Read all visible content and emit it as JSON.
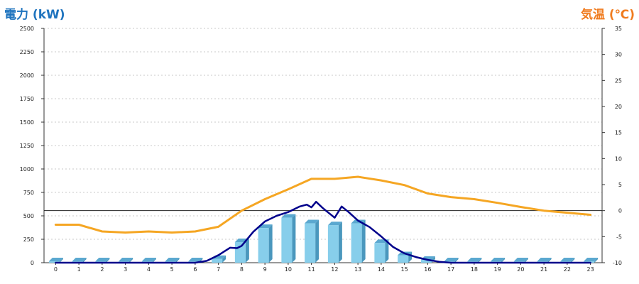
{
  "chart_data": {
    "type": "bar",
    "left_axis": {
      "title": "電力 (kW)",
      "min": 0,
      "max": 2500,
      "ticks": [
        0,
        250,
        500,
        750,
        1000,
        1250,
        1500,
        1750,
        2000,
        2250,
        2500
      ]
    },
    "right_axis": {
      "title": "気温 (℃)",
      "min": -10,
      "max": 35,
      "ticks": [
        -10,
        -5,
        0,
        5,
        10,
        15,
        20,
        25,
        30,
        35
      ]
    },
    "categories": [
      "0",
      "1",
      "2",
      "3",
      "4",
      "5",
      "6",
      "7",
      "8",
      "9",
      "10",
      "11",
      "12",
      "13",
      "14",
      "15",
      "16",
      "17",
      "18",
      "19",
      "20",
      "21",
      "22",
      "23"
    ],
    "grid": true,
    "zero_line_right_axis": 0,
    "series": [
      {
        "kind": "bar",
        "axis": "left",
        "color": "#87ceeb",
        "values": [
          15,
          15,
          15,
          15,
          15,
          15,
          15,
          40,
          220,
          370,
          480,
          420,
          400,
          420,
          210,
          80,
          30,
          15,
          15,
          15,
          15,
          15,
          15,
          15
        ]
      },
      {
        "kind": "line",
        "axis": "right",
        "color": "#f5a623",
        "x": [
          0,
          1,
          2,
          3,
          4,
          5,
          6,
          7,
          8,
          9,
          10,
          11,
          12,
          13,
          14,
          15,
          16,
          17,
          18,
          19,
          20,
          21,
          22,
          23
        ],
        "values": [
          -2.7,
          -2.7,
          -4.0,
          -4.2,
          -4.0,
          -4.2,
          -4.0,
          -3.1,
          0.0,
          2.2,
          4.1,
          6.1,
          6.1,
          6.5,
          5.8,
          4.9,
          3.3,
          2.6,
          2.2,
          1.5,
          0.7,
          0.0,
          -0.4,
          -0.8
        ]
      },
      {
        "kind": "line",
        "axis": "left",
        "color": "#00008b",
        "x": [
          0,
          1,
          2,
          3,
          4,
          5,
          6,
          6.5,
          7,
          7.5,
          7.8,
          8,
          8.5,
          9,
          9.5,
          10,
          10.5,
          10.8,
          11,
          11.2,
          11.5,
          11.7,
          12,
          12.3,
          12.6,
          13,
          13.5,
          14,
          14.5,
          15,
          15.5,
          16,
          16.5,
          17,
          18,
          19,
          20,
          21,
          22,
          23
        ],
        "values": [
          0,
          0,
          0,
          0,
          0,
          0,
          0,
          20,
          80,
          160,
          155,
          180,
          330,
          440,
          500,
          540,
          600,
          620,
          590,
          650,
          580,
          540,
          480,
          600,
          540,
          450,
          380,
          280,
          170,
          100,
          60,
          30,
          10,
          0,
          0,
          0,
          0,
          0,
          0,
          0
        ]
      }
    ]
  }
}
